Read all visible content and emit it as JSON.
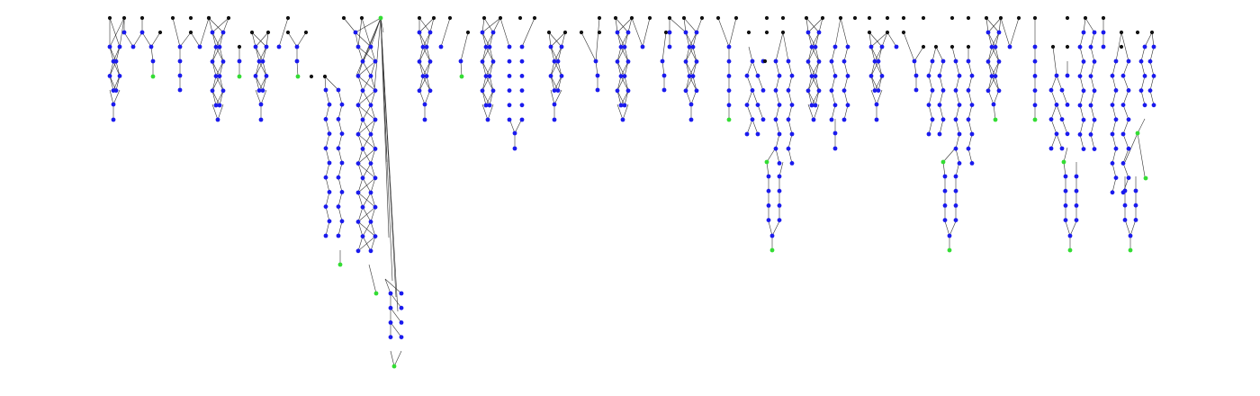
{
  "colors": {
    "background": "#ffffff",
    "edge": "#333333",
    "root_node": "#111111",
    "internal_node": "#1a1aee",
    "leaf_node": "#33dd33"
  },
  "graph": {
    "type": "forest-dag",
    "labels_visible": false,
    "components": [
      {
        "id": "c1",
        "level_span": 7
      },
      {
        "id": "c2",
        "level_span": 4
      },
      {
        "id": "c3",
        "level_span": 7
      },
      {
        "id": "c4",
        "level_span": 7
      },
      {
        "id": "c5",
        "level_span": 24
      },
      {
        "id": "c6",
        "level_span": 7
      },
      {
        "id": "c7",
        "level_span": 9
      },
      {
        "id": "c8",
        "level_span": 7
      },
      {
        "id": "c9",
        "level_span": 7
      },
      {
        "id": "c10",
        "level_span": 7
      },
      {
        "id": "c11",
        "level_span": 16
      },
      {
        "id": "c12",
        "level_span": 9
      },
      {
        "id": "c13",
        "level_span": 7
      },
      {
        "id": "c14",
        "level_span": 16
      },
      {
        "id": "c15",
        "level_span": 7
      },
      {
        "id": "c16",
        "level_span": 16
      },
      {
        "id": "c17",
        "level_span": 16
      }
    ]
  }
}
